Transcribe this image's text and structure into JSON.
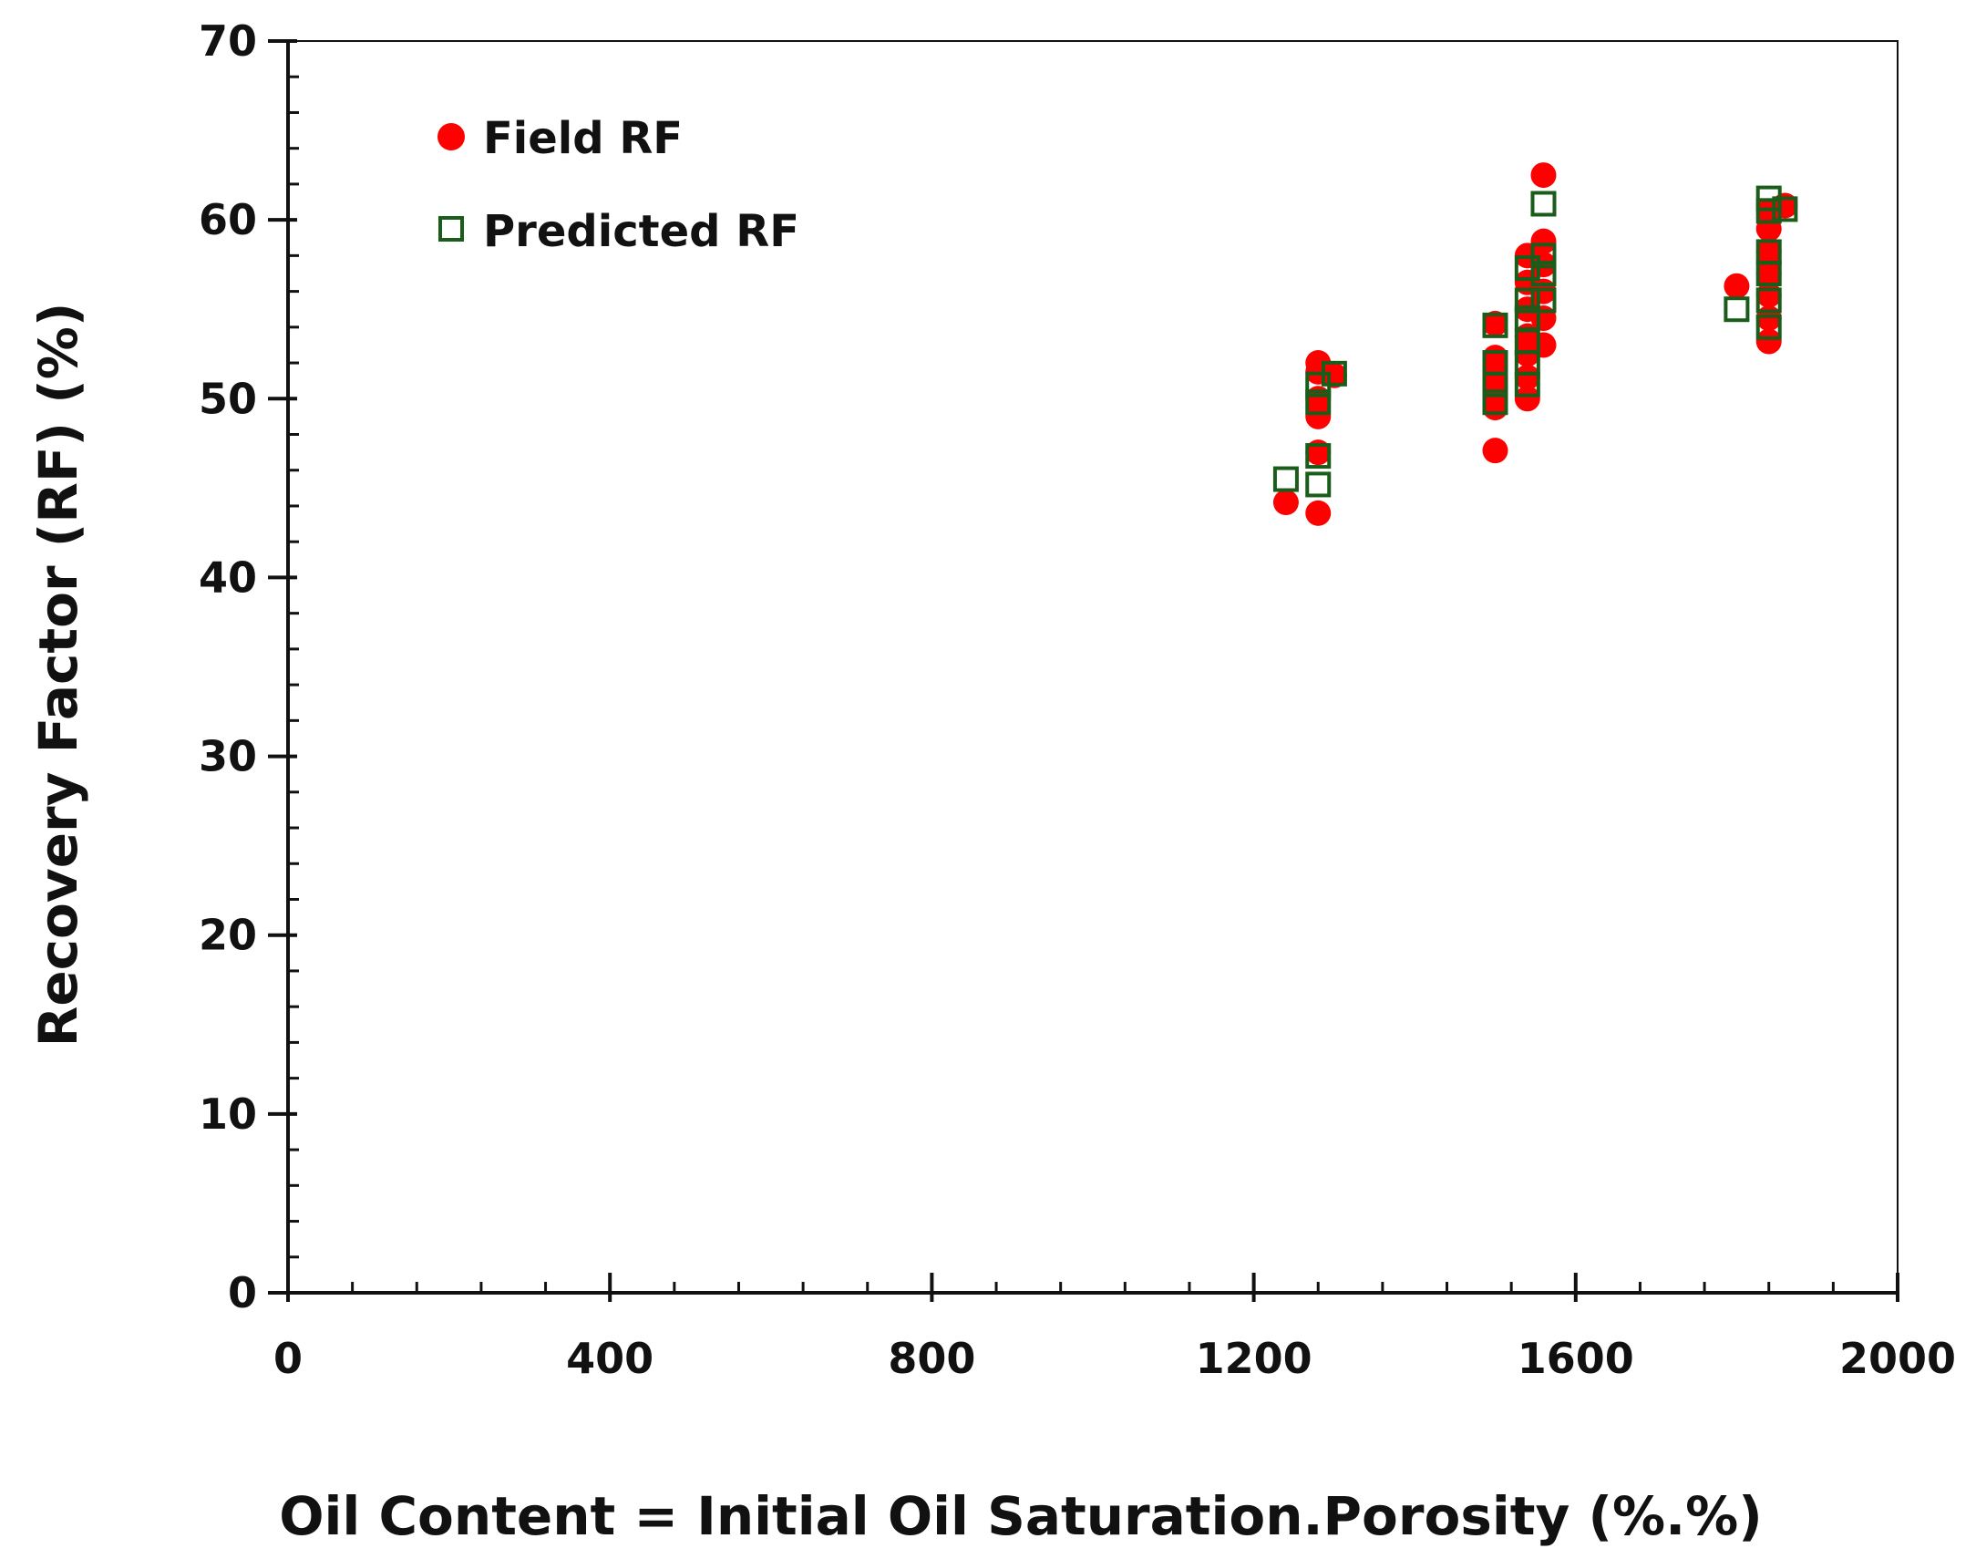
{
  "chart_data": {
    "type": "scatter",
    "title": "",
    "xlabel": "Oil Content = Initial Oil Saturation.Porosity (%.%)",
    "ylabel": "Recovery Factor (RF) (%)",
    "xlim": [
      0,
      2000
    ],
    "ylim": [
      0,
      70
    ],
    "x_ticks": [
      0,
      400,
      800,
      1200,
      1600,
      2000
    ],
    "x_tick_labels": [
      "0",
      "400",
      "800",
      "1200",
      "1600",
      "2000"
    ],
    "y_ticks": [
      0,
      10,
      20,
      30,
      40,
      50,
      60,
      70
    ],
    "y_tick_labels": [
      "0",
      "10",
      "20",
      "30",
      "40",
      "50",
      "60",
      "70"
    ],
    "x_minor_step": 80,
    "y_minor_step": 2,
    "grid": false,
    "legend_position": "top-left",
    "series": [
      {
        "name": "Field RF",
        "marker": "circle",
        "color": "#ff0000",
        "points": [
          [
            1240,
            44.2
          ],
          [
            1280,
            43.6
          ],
          [
            1280,
            47.0
          ],
          [
            1280,
            49.0
          ],
          [
            1280,
            50.0
          ],
          [
            1280,
            51.5
          ],
          [
            1280,
            52.0
          ],
          [
            1300,
            51.3
          ],
          [
            1500,
            47.1
          ],
          [
            1500,
            49.5
          ],
          [
            1500,
            50.5
          ],
          [
            1500,
            51.5
          ],
          [
            1500,
            52.3
          ],
          [
            1500,
            54.2
          ],
          [
            1540,
            50.0
          ],
          [
            1540,
            51.2
          ],
          [
            1540,
            52.5
          ],
          [
            1540,
            53.5
          ],
          [
            1540,
            55.0
          ],
          [
            1540,
            56.5
          ],
          [
            1540,
            58.0
          ],
          [
            1560,
            53.0
          ],
          [
            1560,
            54.5
          ],
          [
            1560,
            56.0
          ],
          [
            1560,
            57.5
          ],
          [
            1560,
            58.8
          ],
          [
            1560,
            62.5
          ],
          [
            1800,
            56.3
          ],
          [
            1840,
            53.2
          ],
          [
            1840,
            54.5
          ],
          [
            1840,
            55.8
          ],
          [
            1840,
            57.0
          ],
          [
            1840,
            58.2
          ],
          [
            1840,
            59.5
          ],
          [
            1840,
            60.5
          ],
          [
            1860,
            60.8
          ]
        ]
      },
      {
        "name": "Predicted RF",
        "marker": "square",
        "color": "#1a5c1a",
        "points": [
          [
            1240,
            45.5
          ],
          [
            1280,
            45.2
          ],
          [
            1280,
            46.8
          ],
          [
            1280,
            49.8
          ],
          [
            1280,
            50.8
          ],
          [
            1300,
            51.4
          ],
          [
            1500,
            49.8
          ],
          [
            1500,
            50.8
          ],
          [
            1500,
            52.0
          ],
          [
            1500,
            54.1
          ],
          [
            1540,
            50.8
          ],
          [
            1540,
            52.0
          ],
          [
            1540,
            53.2
          ],
          [
            1540,
            54.5
          ],
          [
            1540,
            55.5
          ],
          [
            1540,
            57.3
          ],
          [
            1560,
            55.5
          ],
          [
            1560,
            57.0
          ],
          [
            1560,
            58.0
          ],
          [
            1560,
            60.9
          ],
          [
            1800,
            55.0
          ],
          [
            1840,
            54.0
          ],
          [
            1840,
            55.5
          ],
          [
            1840,
            57.0
          ],
          [
            1840,
            58.2
          ],
          [
            1840,
            60.5
          ],
          [
            1840,
            61.2
          ],
          [
            1860,
            60.6
          ]
        ]
      }
    ]
  }
}
